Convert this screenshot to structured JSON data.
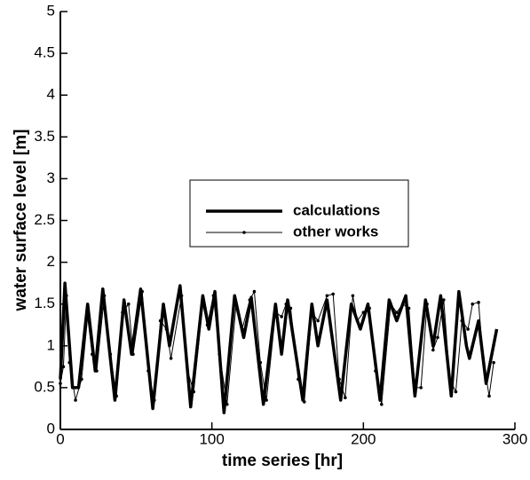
{
  "chart_data": {
    "type": "line",
    "xlabel": "time series [hr]",
    "ylabel": "water surface level [m]",
    "xlim": [
      0,
      300
    ],
    "xticks": [
      0,
      100,
      200,
      300
    ],
    "ylim": [
      0,
      5
    ],
    "yticks": [
      0,
      0.5,
      1,
      1.5,
      2,
      2.5,
      3,
      3.5,
      4,
      4.5,
      5
    ],
    "legend": "center",
    "series": [
      {
        "name": "calculations",
        "color": "#000000",
        "style": "thick",
        "x": [
          0,
          3,
          8,
          12,
          18,
          23,
          28,
          36,
          42,
          47,
          53,
          61,
          68,
          72,
          79,
          86,
          94,
          98,
          102,
          108,
          115,
          121,
          126,
          134,
          142,
          146,
          150,
          160,
          166,
          170,
          176,
          185,
          192,
          198,
          203,
          211,
          217,
          222,
          228,
          234,
          241,
          246,
          251,
          258,
          263,
          268,
          270,
          276,
          281,
          288
        ],
        "values": [
          0.6,
          1.75,
          0.5,
          0.5,
          1.5,
          0.7,
          1.68,
          0.35,
          1.55,
          0.9,
          1.68,
          0.25,
          1.5,
          1.0,
          1.72,
          0.27,
          1.6,
          1.2,
          1.65,
          0.2,
          1.6,
          1.1,
          1.58,
          0.3,
          1.5,
          0.9,
          1.55,
          0.35,
          1.5,
          1.0,
          1.55,
          0.35,
          1.5,
          1.2,
          1.5,
          0.35,
          1.55,
          1.3,
          1.6,
          0.4,
          1.55,
          1.0,
          1.6,
          0.4,
          1.65,
          1.0,
          0.85,
          1.3,
          0.55,
          1.2
        ]
      },
      {
        "name": "other works",
        "color": "#000000",
        "style": "thin-dots",
        "x": [
          0,
          2,
          4,
          6,
          10,
          14,
          18,
          21,
          24,
          29,
          33,
          37,
          41,
          45,
          48,
          54,
          58,
          62,
          66,
          70,
          73,
          80,
          84,
          88,
          94,
          97,
          101,
          105,
          110,
          116,
          120,
          125,
          128,
          132,
          136,
          142,
          146,
          149,
          152,
          157,
          161,
          166,
          170,
          176,
          180,
          184,
          188,
          193,
          196,
          200,
          204,
          208,
          212,
          218,
          222,
          226,
          230,
          234,
          238,
          242,
          246,
          249,
          253,
          257,
          261,
          265,
          269,
          272,
          276,
          279,
          283,
          286
        ],
        "values": [
          0.55,
          0.75,
          1.6,
          0.8,
          0.35,
          0.6,
          1.35,
          0.9,
          0.7,
          1.6,
          0.9,
          0.4,
          1.4,
          1.5,
          0.9,
          1.65,
          0.7,
          0.35,
          1.3,
          1.2,
          0.85,
          1.6,
          0.7,
          0.45,
          1.5,
          1.25,
          1.6,
          0.9,
          0.3,
          1.5,
          1.2,
          1.55,
          1.65,
          0.8,
          0.35,
          1.4,
          1.35,
          1.5,
          1.45,
          0.6,
          0.33,
          1.4,
          1.3,
          1.6,
          1.62,
          0.6,
          0.38,
          1.6,
          1.3,
          1.4,
          1.45,
          0.7,
          0.3,
          1.5,
          1.4,
          1.5,
          1.45,
          0.5,
          0.5,
          1.5,
          0.95,
          1.1,
          1.55,
          0.6,
          0.45,
          1.3,
          1.2,
          1.5,
          1.52,
          0.85,
          0.4,
          0.8
        ]
      }
    ]
  }
}
